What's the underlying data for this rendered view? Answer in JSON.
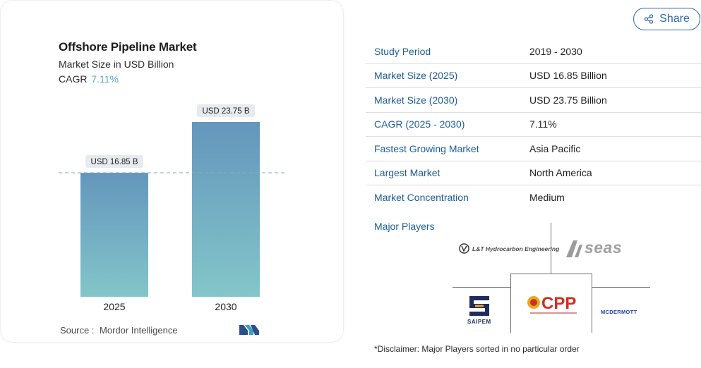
{
  "card": {
    "title": "Offshore Pipeline Market",
    "subtitle": "Market Size in USD Billion",
    "cagr_label": "CAGR",
    "cagr_value": "7.11%",
    "source_label": "Source :",
    "source_value": "Mordor Intelligence"
  },
  "chart_data": {
    "type": "bar",
    "categories": [
      "2025",
      "2030"
    ],
    "values": [
      16.85,
      23.75
    ],
    "data_labels": [
      "USD 16.85 B",
      "USD 23.75 B"
    ],
    "ylim": [
      0,
      23.75
    ],
    "colors": {
      "bar_top": "#6496bc",
      "bar_bottom": "#83c6c9",
      "dashed_line": "#8aa9c8",
      "label_bg": "#e6ebef"
    }
  },
  "share": {
    "label": "Share",
    "color": "#2a6aa3"
  },
  "stats": [
    {
      "key": "Study Period",
      "value": "2019 - 2030"
    },
    {
      "key": "Market Size (2025)",
      "value": "USD 16.85 Billion"
    },
    {
      "key": "Market Size (2030)",
      "value": "USD 23.75 Billion"
    },
    {
      "key": "CAGR (2025 - 2030)",
      "value": "7.11%"
    },
    {
      "key": "Fastest Growing Market",
      "value": "Asia Pacific"
    },
    {
      "key": "Largest Market",
      "value": "North America"
    },
    {
      "key": "Market Concentration",
      "value": "Medium"
    }
  ],
  "players": {
    "label": "Major Players",
    "logos": {
      "lt": "L&T Hydrocarbon Engineering",
      "allseas": "Allseas",
      "saipem": "SAIPEM",
      "cpp": "CPP",
      "mcdermott": "MCDERMOTT"
    }
  },
  "disclaimer": "*Disclaimer: Major Players sorted in no particular order"
}
